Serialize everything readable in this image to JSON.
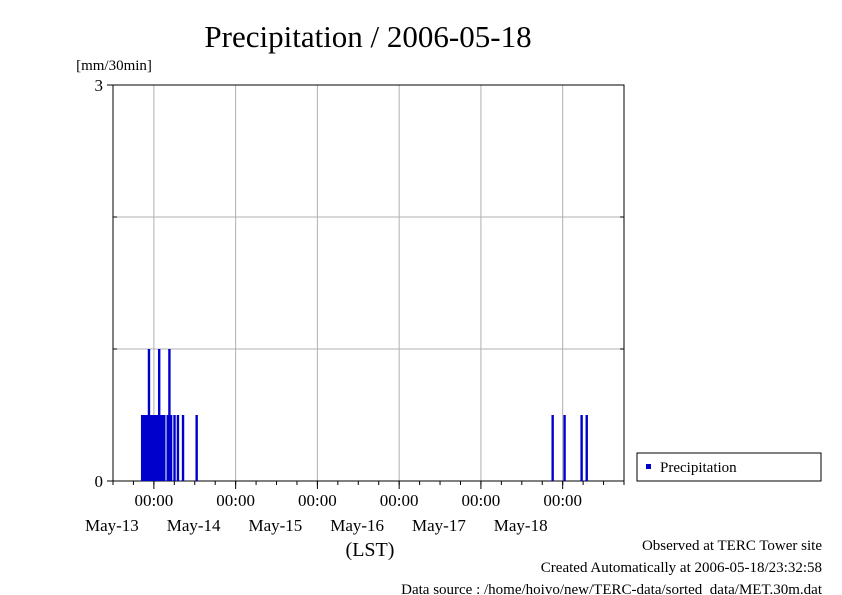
{
  "colors": {
    "series": "#0000cc",
    "axis": "#000000",
    "grid": "#b0b0b0",
    "background": "#ffffff"
  },
  "chart_data": {
    "type": "bar",
    "title": "Precipitation / 2006-05-18",
    "ylabel": "[mm/30min]",
    "xlabel": "(LST)",
    "ylim": [
      0,
      3
    ],
    "y_ticks": [
      {
        "value": 0,
        "label": "0"
      },
      {
        "value": 3,
        "label": "3"
      }
    ],
    "y_grid_values": [
      1,
      2
    ],
    "grid": true,
    "xlim": [
      "2006-05-12T12:00",
      "2006-05-18T18:00"
    ],
    "x_ticks": [
      {
        "time": "2006-05-13T00:00",
        "time_label": "00:00",
        "date_label": "May-13"
      },
      {
        "time": "2006-05-14T00:00",
        "time_label": "00:00",
        "date_label": "May-14"
      },
      {
        "time": "2006-05-15T00:00",
        "time_label": "00:00",
        "date_label": "May-15"
      },
      {
        "time": "2006-05-16T00:00",
        "time_label": "00:00",
        "date_label": "May-16"
      },
      {
        "time": "2006-05-17T00:00",
        "time_label": "00:00",
        "date_label": "May-17"
      },
      {
        "time": "2006-05-18T00:00",
        "time_label": "00:00",
        "date_label": "May-18"
      }
    ],
    "legend_position": "right",
    "series": [
      {
        "name": "Precipitation",
        "points": [
          {
            "x": "2006-05-12T20:30",
            "y": 0.5
          },
          {
            "x": "2006-05-12T21:00",
            "y": 0.5
          },
          {
            "x": "2006-05-12T21:30",
            "y": 0.5
          },
          {
            "x": "2006-05-12T22:00",
            "y": 0.5
          },
          {
            "x": "2006-05-12T22:30",
            "y": 1.0
          },
          {
            "x": "2006-05-12T23:00",
            "y": 0.5
          },
          {
            "x": "2006-05-12T23:30",
            "y": 0.5
          },
          {
            "x": "2006-05-13T00:00",
            "y": 0.5
          },
          {
            "x": "2006-05-13T00:30",
            "y": 0.5
          },
          {
            "x": "2006-05-13T01:00",
            "y": 0.5
          },
          {
            "x": "2006-05-13T01:30",
            "y": 1.0
          },
          {
            "x": "2006-05-13T02:00",
            "y": 0.5
          },
          {
            "x": "2006-05-13T02:30",
            "y": 0.5
          },
          {
            "x": "2006-05-13T03:00",
            "y": 0.5
          },
          {
            "x": "2006-05-13T04:00",
            "y": 0.5
          },
          {
            "x": "2006-05-13T04:30",
            "y": 1.0
          },
          {
            "x": "2006-05-13T05:00",
            "y": 0.5
          },
          {
            "x": "2006-05-13T06:00",
            "y": 0.5
          },
          {
            "x": "2006-05-13T07:00",
            "y": 0.5
          },
          {
            "x": "2006-05-13T08:30",
            "y": 0.5
          },
          {
            "x": "2006-05-13T12:30",
            "y": 0.5
          },
          {
            "x": "2006-05-17T21:00",
            "y": 0.5
          },
          {
            "x": "2006-05-18T00:30",
            "y": 0.5
          },
          {
            "x": "2006-05-18T05:30",
            "y": 0.5
          },
          {
            "x": "2006-05-18T07:00",
            "y": 0.5
          }
        ]
      }
    ]
  },
  "footer": {
    "line1": "Observed at TERC Tower site",
    "line2": "Created Automatically at 2006-05-18/23:32:58",
    "line3": "Data source : /home/hoivo/new/TERC-data/sorted  data/MET.30m.dat"
  }
}
